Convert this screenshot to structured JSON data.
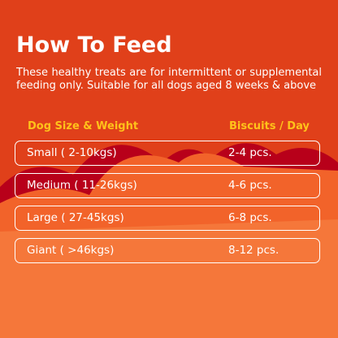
{
  "header": {
    "title": "How To Feed",
    "description": "These healthy treats are for intermittent or supplemental feeding only. Suitable for all dogs aged 8 weeks & above"
  },
  "table": {
    "columns": [
      "Dog Size & Weight",
      "Biscuits / Day"
    ],
    "rows": [
      [
        "Small ( 2-10kgs)",
        "2-4 pcs."
      ],
      [
        "Medium ( 11-26kgs)",
        "4-6 pcs."
      ],
      [
        "Large ( 27-45kgs)",
        "6-8 pcs."
      ],
      [
        "Giant ( >46kgs)",
        "8-12 pcs."
      ]
    ]
  }
}
